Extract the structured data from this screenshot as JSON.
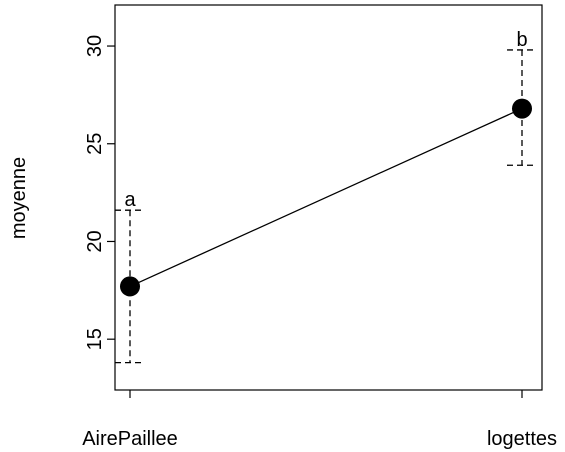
{
  "chart_data": {
    "type": "line",
    "categories": [
      "AirePaillee",
      "logettes"
    ],
    "values": [
      17.7,
      26.8
    ],
    "error_bars": [
      {
        "lower": 13.8,
        "upper": 21.6
      },
      {
        "lower": 23.9,
        "upper": 29.8
      }
    ],
    "point_labels": [
      "a",
      "b"
    ],
    "xlabel": "",
    "ylabel": "moyenne",
    "yticks": [
      15,
      20,
      25,
      30
    ],
    "ylim": [
      12.4,
      32.1
    ],
    "grid": false,
    "colors": {
      "line": "#000000",
      "marker": "#000000",
      "background": "#ffffff"
    }
  }
}
